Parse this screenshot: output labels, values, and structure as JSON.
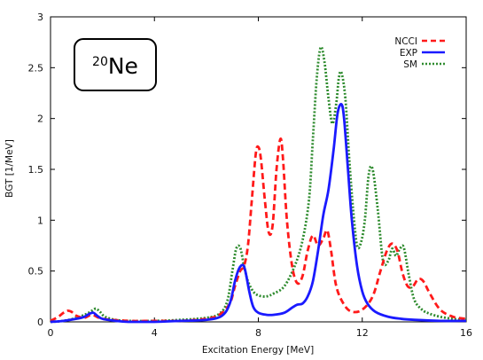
{
  "chart_data": {
    "type": "line",
    "title": "",
    "xlabel": "Excitation Energy [MeV]",
    "ylabel": "BGT [1/MeV]",
    "xlim": [
      0,
      16
    ],
    "ylim": [
      0,
      3
    ],
    "xticks": [
      0,
      4,
      8,
      12,
      16
    ],
    "yticks": [
      0,
      0.5,
      1,
      1.5,
      2,
      2.5,
      3
    ],
    "xtick_labels": [
      "0",
      "4",
      "8",
      "12",
      "16"
    ],
    "ytick_labels": [
      "0",
      "0.5",
      "1",
      "1.5",
      "2",
      "2.5",
      "3"
    ],
    "grid": false,
    "legend_position": "top-right",
    "annotation": {
      "mass_number": "20",
      "symbol": "Ne"
    },
    "series": [
      {
        "name": "NCCI",
        "color": "#ff1a1a",
        "style": "dashed",
        "x": [
          0,
          0.3,
          0.5,
          0.65,
          0.8,
          1.0,
          1.3,
          1.6,
          2.0,
          3.0,
          4.0,
          5.0,
          6.0,
          6.5,
          6.9,
          7.1,
          7.3,
          7.45,
          7.6,
          7.75,
          7.9,
          8.0,
          8.1,
          8.25,
          8.4,
          8.55,
          8.7,
          8.85,
          8.95,
          9.1,
          9.3,
          9.5,
          9.7,
          9.9,
          10.1,
          10.3,
          10.5,
          10.65,
          10.8,
          11.0,
          11.3,
          11.6,
          12.0,
          12.4,
          12.7,
          12.95,
          13.15,
          13.35,
          13.55,
          13.75,
          13.95,
          14.15,
          14.35,
          14.6,
          15.0,
          15.5,
          16.0
        ],
        "y": [
          0.01,
          0.05,
          0.09,
          0.11,
          0.1,
          0.06,
          0.04,
          0.07,
          0.03,
          0.01,
          0.01,
          0.01,
          0.03,
          0.07,
          0.18,
          0.35,
          0.5,
          0.55,
          0.75,
          1.2,
          1.65,
          1.72,
          1.6,
          1.2,
          0.88,
          0.95,
          1.5,
          1.8,
          1.6,
          1.0,
          0.55,
          0.38,
          0.45,
          0.7,
          0.85,
          0.75,
          0.82,
          0.9,
          0.7,
          0.35,
          0.17,
          0.1,
          0.12,
          0.25,
          0.5,
          0.7,
          0.77,
          0.7,
          0.48,
          0.35,
          0.35,
          0.42,
          0.4,
          0.28,
          0.12,
          0.05,
          0.03
        ]
      },
      {
        "name": "EXP",
        "color": "#1a1aff",
        "style": "solid",
        "x": [
          0,
          0.5,
          1.0,
          1.3,
          1.5,
          1.65,
          1.8,
          2.0,
          2.5,
          3.0,
          4.0,
          5.0,
          6.0,
          6.6,
          6.9,
          7.1,
          7.25,
          7.4,
          7.5,
          7.65,
          7.8,
          8.0,
          8.3,
          8.6,
          9.0,
          9.3,
          9.5,
          9.7,
          9.9,
          10.1,
          10.3,
          10.5,
          10.7,
          10.9,
          11.05,
          11.2,
          11.3,
          11.45,
          11.6,
          11.8,
          12.0,
          12.2,
          12.5,
          13.0,
          13.5,
          14.0,
          15.0,
          16.0
        ],
        "y": [
          0.0,
          0.01,
          0.03,
          0.05,
          0.08,
          0.09,
          0.06,
          0.03,
          0.01,
          0.0,
          0.0,
          0.01,
          0.02,
          0.06,
          0.18,
          0.4,
          0.52,
          0.56,
          0.5,
          0.3,
          0.15,
          0.09,
          0.07,
          0.07,
          0.09,
          0.14,
          0.17,
          0.18,
          0.25,
          0.4,
          0.7,
          1.05,
          1.3,
          1.7,
          2.05,
          2.14,
          2.0,
          1.5,
          1.0,
          0.55,
          0.3,
          0.18,
          0.1,
          0.05,
          0.03,
          0.02,
          0.01,
          0.01
        ]
      },
      {
        "name": "SM",
        "color": "#2e8b2e",
        "style": "dotted",
        "x": [
          0,
          0.5,
          1.0,
          1.4,
          1.6,
          1.75,
          1.9,
          2.1,
          2.5,
          3.0,
          4.0,
          5.0,
          6.0,
          6.5,
          6.8,
          7.0,
          7.15,
          7.3,
          7.45,
          7.6,
          7.8,
          8.0,
          8.3,
          8.6,
          9.0,
          9.4,
          9.7,
          9.95,
          10.1,
          10.25,
          10.4,
          10.55,
          10.7,
          10.85,
          11.0,
          11.1,
          11.2,
          11.35,
          11.5,
          11.65,
          11.8,
          11.95,
          12.1,
          12.25,
          12.4,
          12.6,
          12.8,
          13.0,
          13.15,
          13.3,
          13.45,
          13.6,
          13.8,
          14.0,
          14.3,
          14.6,
          15.0,
          15.5,
          16.0
        ],
        "y": [
          0.0,
          0.01,
          0.04,
          0.08,
          0.11,
          0.13,
          0.1,
          0.05,
          0.02,
          0.01,
          0.01,
          0.02,
          0.04,
          0.08,
          0.2,
          0.5,
          0.72,
          0.73,
          0.55,
          0.4,
          0.3,
          0.26,
          0.25,
          0.28,
          0.35,
          0.55,
          0.8,
          1.2,
          1.8,
          2.4,
          2.7,
          2.55,
          2.2,
          1.95,
          2.15,
          2.4,
          2.45,
          2.2,
          1.6,
          1.1,
          0.75,
          0.78,
          1.0,
          1.45,
          1.5,
          1.1,
          0.6,
          0.6,
          0.72,
          0.65,
          0.72,
          0.73,
          0.45,
          0.22,
          0.12,
          0.08,
          0.05,
          0.03,
          0.02
        ]
      }
    ]
  }
}
